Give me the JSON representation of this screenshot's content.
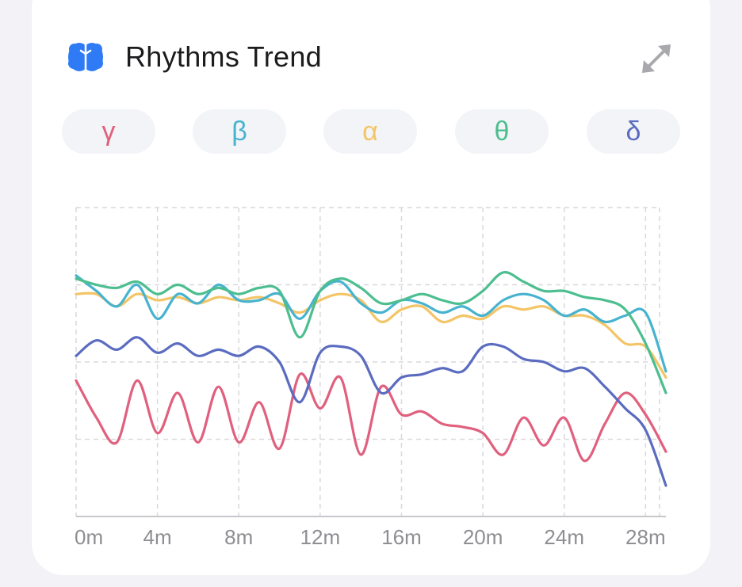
{
  "card": {
    "title": "Rhythms Trend",
    "icon": "brain-icon",
    "icon_color": "#2f7bf5",
    "expand_icon": "expand-arrows-icon"
  },
  "filters": [
    {
      "label": "γ",
      "color": "#e0607e"
    },
    {
      "label": "β",
      "color": "#47b3cf"
    },
    {
      "label": "α",
      "color": "#f3c567"
    },
    {
      "label": "θ",
      "color": "#4cbe8f"
    },
    {
      "label": "δ",
      "color": "#5b6cc0"
    }
  ],
  "chart_data": {
    "type": "line",
    "x_ticks": [
      "0m",
      "4m",
      "8m",
      "12m",
      "16m",
      "20m",
      "24m",
      "28m"
    ],
    "x": [
      0,
      1,
      2,
      3,
      4,
      5,
      6,
      7,
      8,
      9,
      10,
      11,
      12,
      13,
      14,
      15,
      16,
      17,
      18,
      19,
      20,
      21,
      22,
      23,
      24,
      25,
      26,
      27,
      28,
      29
    ],
    "xlim": [
      0,
      29
    ],
    "ylim": [
      0,
      100
    ],
    "grid": true,
    "series": [
      {
        "name": "γ",
        "color": "#e0607e",
        "values": [
          44,
          32,
          24,
          44,
          27,
          40,
          24,
          42,
          24,
          37,
          22,
          46,
          35,
          45,
          20,
          42,
          33,
          34,
          30,
          29,
          27,
          20,
          32,
          23,
          32,
          18,
          30,
          40,
          33,
          21
        ]
      },
      {
        "name": "β",
        "color": "#47b3cf",
        "values": [
          78,
          73,
          68,
          75,
          64,
          72,
          69,
          75,
          70,
          70,
          72,
          64,
          73,
          76,
          69,
          66,
          70,
          69,
          66,
          68,
          65,
          70,
          72,
          70,
          65,
          67,
          63,
          65,
          66,
          47
        ]
      },
      {
        "name": "α",
        "color": "#f3c567",
        "values": [
          72,
          72,
          68,
          72,
          70,
          71,
          69,
          71,
          70,
          71,
          69,
          66,
          70,
          72,
          70,
          63,
          67,
          68,
          63,
          65,
          64,
          68,
          67,
          68,
          65,
          65,
          62,
          56,
          55,
          45
        ]
      },
      {
        "name": "θ",
        "color": "#4cbe8f",
        "values": [
          77,
          75,
          74,
          76,
          72,
          75,
          72,
          74,
          72,
          74,
          73,
          58,
          73,
          77,
          74,
          69,
          70,
          72,
          70,
          69,
          73,
          79,
          76,
          73,
          73,
          71,
          70,
          67,
          56,
          40
        ]
      },
      {
        "name": "δ",
        "color": "#5b6cc0",
        "values": [
          52,
          57,
          54,
          58,
          53,
          56,
          52,
          54,
          52,
          55,
          50,
          37,
          53,
          55,
          52,
          40,
          45,
          46,
          48,
          47,
          55,
          55,
          51,
          50,
          47,
          48,
          42,
          35,
          28,
          10
        ]
      }
    ]
  }
}
